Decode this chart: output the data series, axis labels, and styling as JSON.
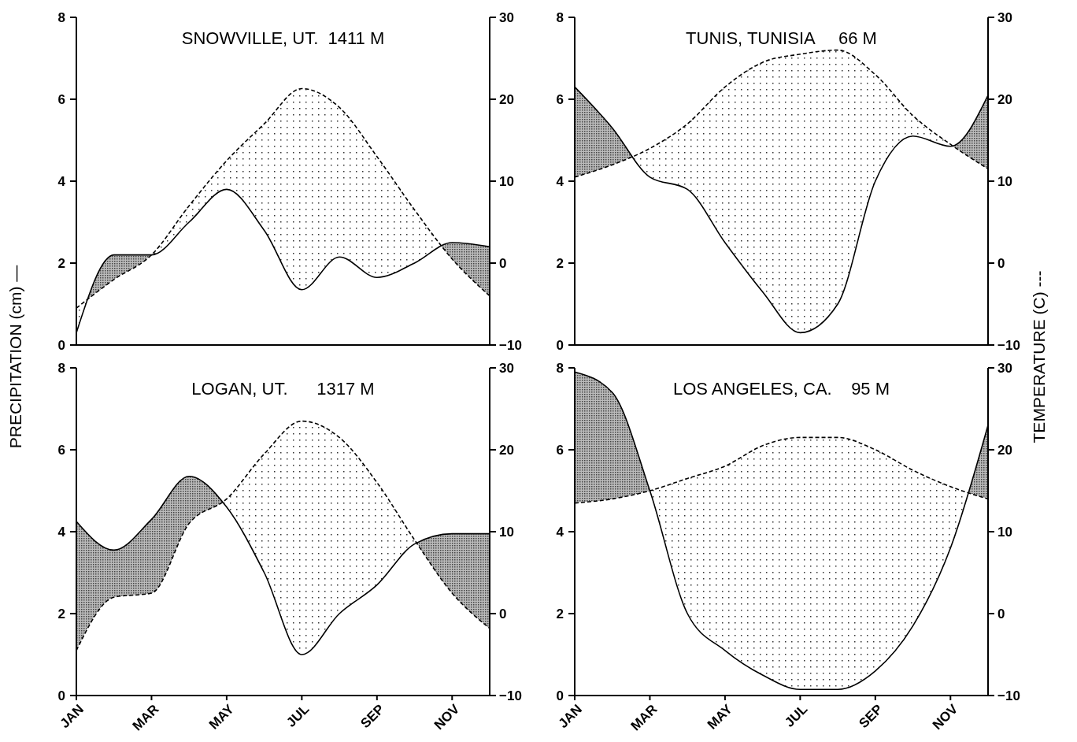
{
  "chart_data": [
    {
      "type": "line",
      "title": "SNOWVILLE, UT.  1411 M",
      "ylabel": "PRECIPITATION (cm) —",
      "categories": [
        null,
        null,
        null,
        null,
        null,
        null,
        null,
        null,
        null,
        null,
        null,
        null
      ],
      "ylim": [
        0,
        8
      ],
      "yticks": [
        0,
        2,
        4,
        6,
        8
      ],
      "y2lim": [
        -10,
        30
      ],
      "y2ticks": [
        -10,
        0,
        10,
        20,
        30
      ],
      "tick_labels": "y",
      "series": [
        {
          "type": "line",
          "line_style": "solid",
          "color": "#000000",
          "values": [
            0.3,
            2.2,
            2.2,
            3.0,
            3.8,
            2.8,
            1.35,
            2.15,
            1.65,
            2.0,
            2.5,
            2.4
          ],
          "lower": [
            0.9,
            1.6,
            2.2,
            3.4,
            4.5,
            5.4,
            6.26,
            5.8,
            4.6,
            3.3,
            2.1,
            1.2
          ],
          "upper": [
            0.3,
            2.2,
            2.2,
            3.0,
            3.8,
            2.8,
            1.35,
            2.15,
            1.65,
            2.0,
            2.5,
            2.4
          ]
        },
        {
          "type": "line",
          "axis": "y2",
          "line_style": "dashed",
          "color": "#000000",
          "values": [
            -5.5,
            -2,
            1,
            7,
            12.5,
            17,
            21.3,
            19,
            13,
            6.5,
            0.5,
            -4
          ]
        }
      ]
    },
    {
      "type": "line",
      "title": "TUNIS, TUNISIA     66 M",
      "y2label": "TEMPERATURE (C) ---",
      "categories": [
        null,
        null,
        null,
        null,
        null,
        null,
        null,
        null,
        null,
        null,
        null,
        null
      ],
      "ylim": [
        0,
        8
      ],
      "yticks": [
        0,
        2,
        4,
        6,
        8
      ],
      "y2lim": [
        -10,
        30
      ],
      "y2ticks": [
        -10,
        0,
        10,
        20,
        30
      ],
      "tick_labels": "y",
      "series": [
        {
          "type": "line",
          "line_style": "solid",
          "color": "#000000",
          "values": [
            6.3,
            5.3,
            4.1,
            3.8,
            2.5,
            1.3,
            0.3,
            1.0,
            4.0,
            5.1,
            4.85,
            6.1
          ],
          "lower": [
            4.1,
            4.4,
            4.8,
            5.4,
            6.3,
            6.9,
            7.1,
            7.2,
            6.6,
            5.6,
            4.9,
            4.3
          ],
          "upper": [
            6.3,
            5.3,
            4.1,
            3.8,
            2.5,
            1.3,
            0.3,
            1.0,
            4.0,
            5.1,
            4.85,
            6.1
          ]
        },
        {
          "type": "line",
          "axis": "y2",
          "line_style": "dashed",
          "color": "#000000",
          "values": [
            10.5,
            12,
            14,
            17,
            21.5,
            24.5,
            25.5,
            26,
            23,
            18,
            14.5,
            11.5
          ]
        }
      ]
    },
    {
      "type": "line",
      "title": "LOGAN, UT.      1317 M",
      "categories": [
        "JAN",
        null,
        "MAR",
        null,
        "MAY",
        null,
        "JUL",
        null,
        "SEP",
        null,
        "NOV",
        null
      ],
      "ylim": [
        0,
        8
      ],
      "yticks": [
        0,
        2,
        4,
        6,
        8
      ],
      "y2lim": [
        -10,
        30
      ],
      "y2ticks": [
        -10,
        0,
        10,
        20,
        30
      ],
      "series": [
        {
          "type": "line",
          "line_style": "solid",
          "color": "#000000",
          "values": [
            4.25,
            3.55,
            4.3,
            5.35,
            4.6,
            3.0,
            1.0,
            2.0,
            2.7,
            3.7,
            3.95,
            3.95
          ],
          "lower": [
            1.1,
            2.4,
            2.5,
            4.2,
            4.8,
            5.9,
            6.7,
            6.3,
            5.2,
            3.8,
            2.5,
            1.64
          ],
          "upper": [
            4.25,
            3.55,
            4.3,
            5.35,
            4.6,
            3.0,
            1.0,
            2.0,
            2.7,
            3.7,
            3.95,
            3.95
          ]
        },
        {
          "type": "line",
          "axis": "y2",
          "line_style": "dashed",
          "color": "#000000",
          "values": [
            -4.5,
            2,
            2.5,
            11,
            14,
            19.5,
            23.5,
            21.5,
            16,
            9,
            2.5,
            -1.8
          ]
        }
      ]
    },
    {
      "type": "line",
      "title": "LOS ANGELES, CA.    95 M",
      "categories": [
        "JAN",
        null,
        "MAR",
        null,
        "MAY",
        null,
        "JUL",
        null,
        "SEP",
        null,
        "NOV",
        null
      ],
      "ylim": [
        0,
        8
      ],
      "yticks": [
        0,
        2,
        4,
        6,
        8
      ],
      "y2lim": [
        -10,
        30
      ],
      "y2ticks": [
        -10,
        0,
        10,
        20,
        30
      ],
      "series": [
        {
          "type": "line",
          "line_style": "solid",
          "color": "#000000",
          "values": [
            7.9,
            7.4,
            5.0,
            2.0,
            1.1,
            0.5,
            0.15,
            0.15,
            0.6,
            1.7,
            3.6,
            6.6
          ],
          "lower": [
            4.7,
            4.8,
            5.0,
            5.3,
            5.6,
            6.1,
            6.3,
            6.3,
            6.0,
            5.5,
            5.1,
            4.8
          ],
          "upper": [
            7.9,
            7.4,
            5.0,
            2.0,
            1.1,
            0.5,
            0.15,
            0.15,
            0.6,
            1.7,
            3.6,
            6.6
          ]
        },
        {
          "type": "line",
          "axis": "y2",
          "line_style": "dashed",
          "color": "#000000",
          "values": [
            13.5,
            14,
            15,
            16.5,
            18,
            20.5,
            21.5,
            21.5,
            20,
            17.5,
            15.5,
            14
          ]
        }
      ]
    }
  ]
}
